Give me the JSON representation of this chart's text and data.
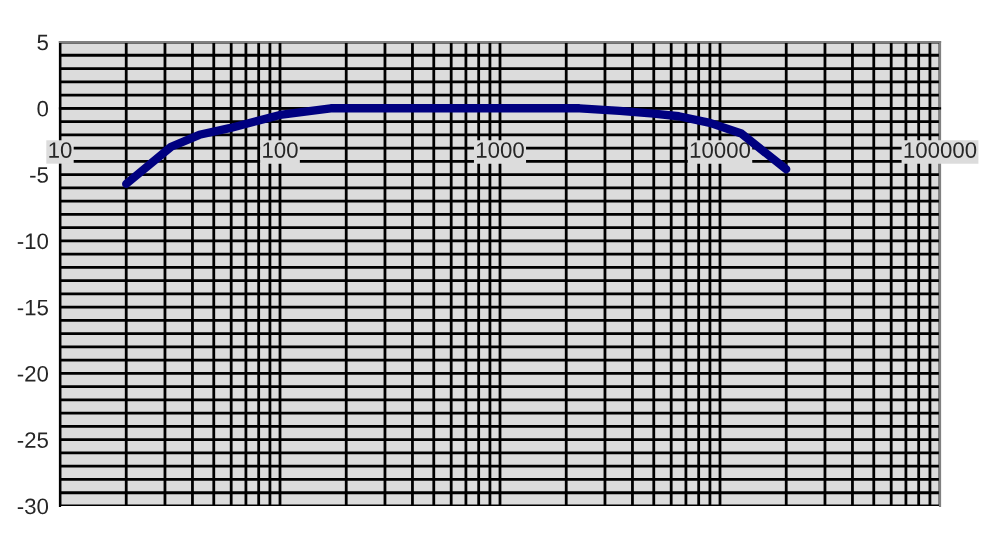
{
  "chart_data": {
    "type": "line",
    "log": "x",
    "color": "#000080",
    "x": [
      20,
      32,
      43,
      59,
      81,
      100,
      170,
      500,
      1000,
      2300,
      3500,
      5000,
      6500,
      9000,
      12500,
      20000
    ],
    "values": [
      -5.7,
      -2.9,
      -2.0,
      -1.5,
      -0.9,
      -0.5,
      0,
      0,
      0,
      0,
      -0.2,
      -0.4,
      -0.6,
      -1.1,
      -1.9,
      -4.6
    ],
    "xlim": [
      10,
      100000
    ],
    "xticks": [
      10,
      100,
      1000,
      10000,
      100000
    ],
    "ylim": [
      -30,
      5
    ],
    "yticks": [
      -30,
      -25,
      -20,
      -15,
      -10,
      -5,
      0,
      5
    ],
    "grid": true
  }
}
